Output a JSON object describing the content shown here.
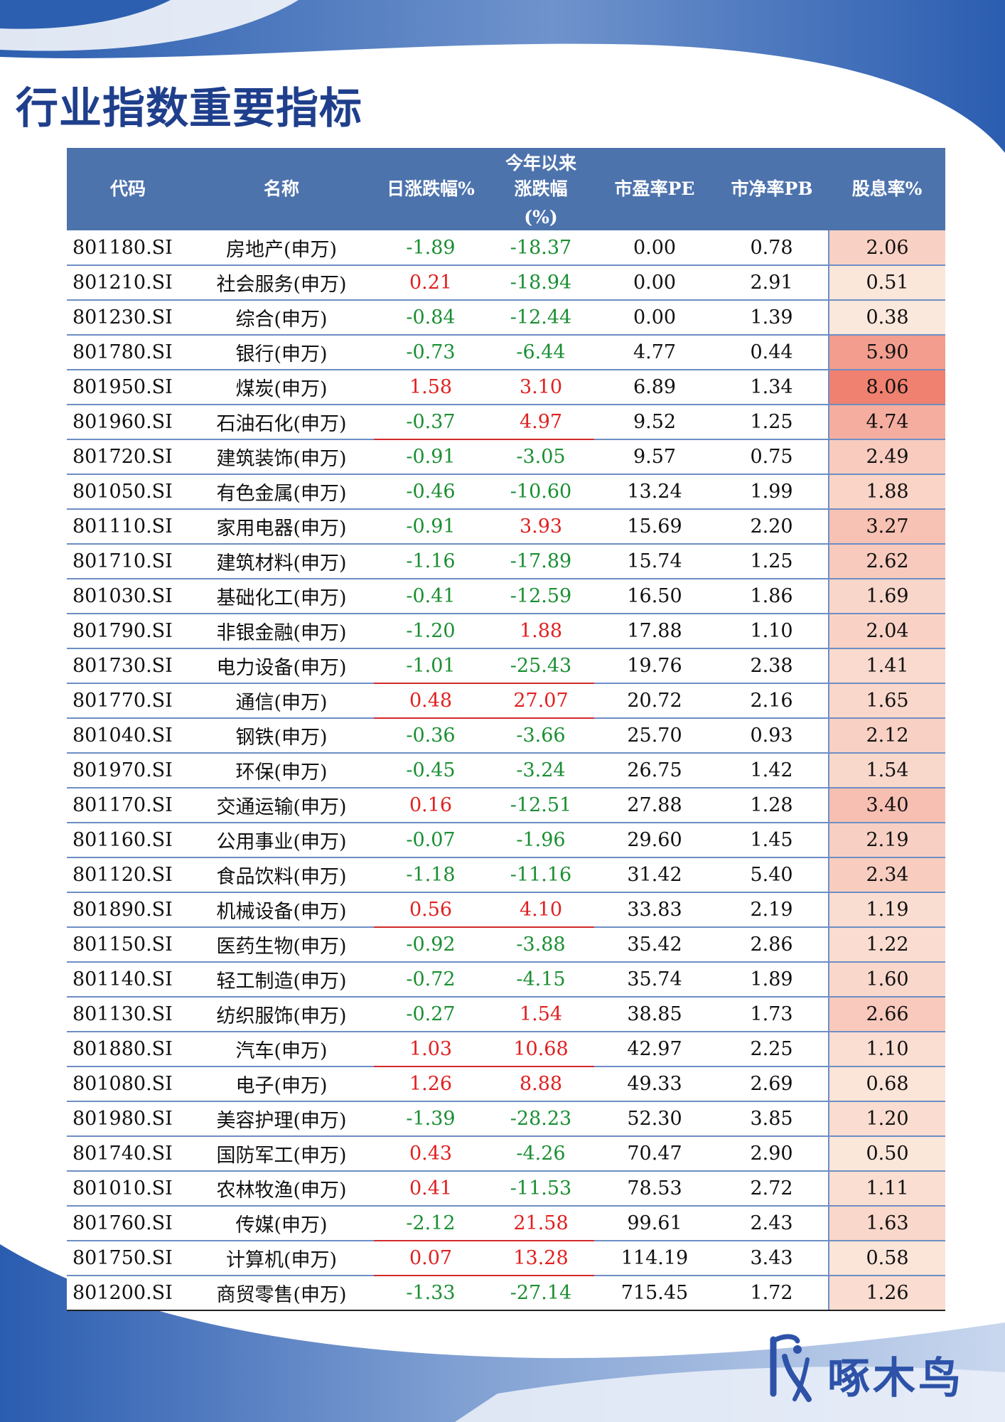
{
  "title": "行业指数重要指标",
  "headers": [
    "代码",
    "名称",
    "日涨跌幅%",
    [
      "今年以来",
      "涨跌幅",
      "(%)"
    ],
    "市盈率PE",
    "市净率PB",
    "股息率%"
  ],
  "colors": {
    "title": "#1f3f8c",
    "header_bg": "#4d73ad",
    "positive": "#e02020",
    "negative": "#1a8f32",
    "row_line": "#6d8ec4",
    "yield_low": "#fbe8dc",
    "yield_high": "#f08070"
  },
  "rows": [
    {
      "code": "801180.SI",
      "name": "房地产(申万)",
      "daily": "-1.89",
      "ytd": "-18.37",
      "pe": "0.00",
      "pb": "0.78",
      "dy": "2.06"
    },
    {
      "code": "801210.SI",
      "name": "社会服务(申万)",
      "daily": "0.21",
      "ytd": "-18.94",
      "pe": "0.00",
      "pb": "2.91",
      "dy": "0.51"
    },
    {
      "code": "801230.SI",
      "name": "综合(申万)",
      "daily": "-0.84",
      "ytd": "-12.44",
      "pe": "0.00",
      "pb": "1.39",
      "dy": "0.38"
    },
    {
      "code": "801780.SI",
      "name": "银行(申万)",
      "daily": "-0.73",
      "ytd": "-6.44",
      "pe": "4.77",
      "pb": "0.44",
      "dy": "5.90"
    },
    {
      "code": "801950.SI",
      "name": "煤炭(申万)",
      "daily": "1.58",
      "ytd": "3.10",
      "pe": "6.89",
      "pb": "1.34",
      "dy": "8.06"
    },
    {
      "code": "801960.SI",
      "name": "石油石化(申万)",
      "daily": "-0.37",
      "ytd": "4.97",
      "pe": "9.52",
      "pb": "1.25",
      "dy": "4.74"
    },
    {
      "code": "801720.SI",
      "name": "建筑装饰(申万)",
      "daily": "-0.91",
      "ytd": "-3.05",
      "pe": "9.57",
      "pb": "0.75",
      "dy": "2.49"
    },
    {
      "code": "801050.SI",
      "name": "有色金属(申万)",
      "daily": "-0.46",
      "ytd": "-10.60",
      "pe": "13.24",
      "pb": "1.99",
      "dy": "1.88"
    },
    {
      "code": "801110.SI",
      "name": "家用电器(申万)",
      "daily": "-0.91",
      "ytd": "3.93",
      "pe": "15.69",
      "pb": "2.20",
      "dy": "3.27"
    },
    {
      "code": "801710.SI",
      "name": "建筑材料(申万)",
      "daily": "-1.16",
      "ytd": "-17.89",
      "pe": "15.74",
      "pb": "1.25",
      "dy": "2.62"
    },
    {
      "code": "801030.SI",
      "name": "基础化工(申万)",
      "daily": "-0.41",
      "ytd": "-12.59",
      "pe": "16.50",
      "pb": "1.86",
      "dy": "1.69"
    },
    {
      "code": "801790.SI",
      "name": "非银金融(申万)",
      "daily": "-1.20",
      "ytd": "1.88",
      "pe": "17.88",
      "pb": "1.10",
      "dy": "2.04"
    },
    {
      "code": "801730.SI",
      "name": "电力设备(申万)",
      "daily": "-1.01",
      "ytd": "-25.43",
      "pe": "19.76",
      "pb": "2.38",
      "dy": "1.41"
    },
    {
      "code": "801770.SI",
      "name": "通信(申万)",
      "daily": "0.48",
      "ytd": "27.07",
      "pe": "20.72",
      "pb": "2.16",
      "dy": "1.65"
    },
    {
      "code": "801040.SI",
      "name": "钢铁(申万)",
      "daily": "-0.36",
      "ytd": "-3.66",
      "pe": "25.70",
      "pb": "0.93",
      "dy": "2.12"
    },
    {
      "code": "801970.SI",
      "name": "环保(申万)",
      "daily": "-0.45",
      "ytd": "-3.24",
      "pe": "26.75",
      "pb": "1.42",
      "dy": "1.54"
    },
    {
      "code": "801170.SI",
      "name": "交通运输(申万)",
      "daily": "0.16",
      "ytd": "-12.51",
      "pe": "27.88",
      "pb": "1.28",
      "dy": "3.40"
    },
    {
      "code": "801160.SI",
      "name": "公用事业(申万)",
      "daily": "-0.07",
      "ytd": "-1.96",
      "pe": "29.60",
      "pb": "1.45",
      "dy": "2.19"
    },
    {
      "code": "801120.SI",
      "name": "食品饮料(申万)",
      "daily": "-1.18",
      "ytd": "-11.16",
      "pe": "31.42",
      "pb": "5.40",
      "dy": "2.34"
    },
    {
      "code": "801890.SI",
      "name": "机械设备(申万)",
      "daily": "0.56",
      "ytd": "4.10",
      "pe": "33.83",
      "pb": "2.19",
      "dy": "1.19"
    },
    {
      "code": "801150.SI",
      "name": "医药生物(申万)",
      "daily": "-0.92",
      "ytd": "-3.88",
      "pe": "35.42",
      "pb": "2.86",
      "dy": "1.22"
    },
    {
      "code": "801140.SI",
      "name": "轻工制造(申万)",
      "daily": "-0.72",
      "ytd": "-4.15",
      "pe": "35.74",
      "pb": "1.89",
      "dy": "1.60"
    },
    {
      "code": "801130.SI",
      "name": "纺织服饰(申万)",
      "daily": "-0.27",
      "ytd": "1.54",
      "pe": "38.85",
      "pb": "1.73",
      "dy": "2.66"
    },
    {
      "code": "801880.SI",
      "name": "汽车(申万)",
      "daily": "1.03",
      "ytd": "10.68",
      "pe": "42.97",
      "pb": "2.25",
      "dy": "1.10"
    },
    {
      "code": "801080.SI",
      "name": "电子(申万)",
      "daily": "1.26",
      "ytd": "8.88",
      "pe": "49.33",
      "pb": "2.69",
      "dy": "0.68"
    },
    {
      "code": "801980.SI",
      "name": "美容护理(申万)",
      "daily": "-1.39",
      "ytd": "-28.23",
      "pe": "52.30",
      "pb": "3.85",
      "dy": "1.20"
    },
    {
      "code": "801740.SI",
      "name": "国防军工(申万)",
      "daily": "0.43",
      "ytd": "-4.26",
      "pe": "70.47",
      "pb": "2.90",
      "dy": "0.50"
    },
    {
      "code": "801010.SI",
      "name": "农林牧渔(申万)",
      "daily": "0.41",
      "ytd": "-11.53",
      "pe": "78.53",
      "pb": "2.72",
      "dy": "1.11"
    },
    {
      "code": "801760.SI",
      "name": "传媒(申万)",
      "daily": "-2.12",
      "ytd": "21.58",
      "pe": "99.61",
      "pb": "2.43",
      "dy": "1.63"
    },
    {
      "code": "801750.SI",
      "name": "计算机(申万)",
      "daily": "0.07",
      "ytd": "13.28",
      "pe": "114.19",
      "pb": "3.43",
      "dy": "0.58"
    },
    {
      "code": "801200.SI",
      "name": "商贸零售(申万)",
      "daily": "-1.33",
      "ytd": "-27.14",
      "pe": "715.45",
      "pb": "1.72",
      "dy": "1.26"
    }
  ],
  "brand": {
    "name": "啄木鸟",
    "logo_icon": "woodpecker-logo-icon"
  }
}
